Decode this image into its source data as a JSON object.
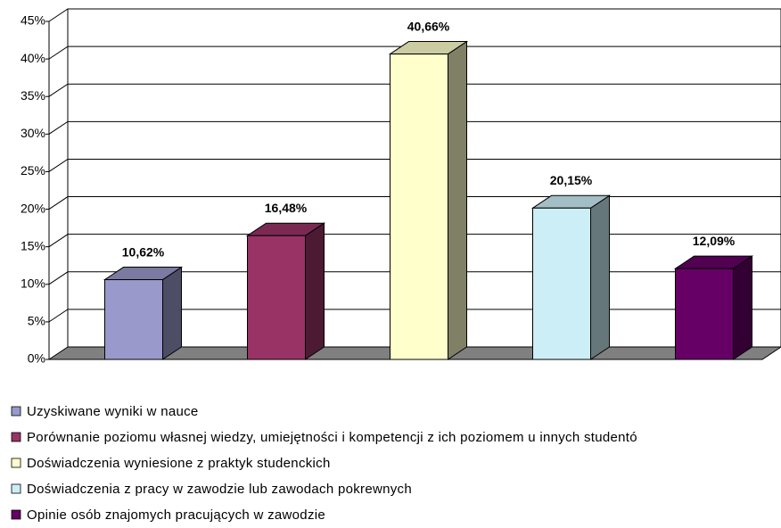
{
  "chart_data": {
    "type": "bar3d",
    "categories": [
      null
    ],
    "series": [
      {
        "name": "Uzyskiwane wyniki w nauce",
        "color": "#9999cc",
        "values": [
          10.62
        ],
        "value_labels": [
          "10,62%"
        ]
      },
      {
        "name": "Porównanie poziomu własnej wiedzy, umiejętności i kompetencji z ich poziomem u innych studentó",
        "color": "#993366",
        "values": [
          16.48
        ],
        "value_labels": [
          "16,48%"
        ]
      },
      {
        "name": "Doświadczenia wyniesione z praktyk studenckich",
        "color": "#ffffcc",
        "values": [
          40.66
        ],
        "value_labels": [
          "40,66%"
        ]
      },
      {
        "name": "Doświadczenia z pracy w zawodzie lub zawodach pokrewnych",
        "color": "#cceef6",
        "values": [
          20.15
        ],
        "value_labels": [
          "20,15%"
        ]
      },
      {
        "name": "Opinie osób znajomych pracujących w zawodzie",
        "color": "#660066",
        "values": [
          12.09
        ],
        "value_labels": [
          "12,09%"
        ]
      }
    ],
    "ylim": [
      0,
      45
    ],
    "yticks": [
      {
        "value": 0,
        "label": "0%"
      },
      {
        "value": 5,
        "label": "5%"
      },
      {
        "value": 10,
        "label": "10%"
      },
      {
        "value": 15,
        "label": "15%"
      },
      {
        "value": 20,
        "label": "20%"
      },
      {
        "value": 25,
        "label": "25%"
      },
      {
        "value": 30,
        "label": "30%"
      },
      {
        "value": 35,
        "label": "35%"
      },
      {
        "value": 40,
        "label": "40%"
      },
      {
        "value": 45,
        "label": "45%"
      }
    ],
    "grid": true,
    "legend": "bottom"
  }
}
